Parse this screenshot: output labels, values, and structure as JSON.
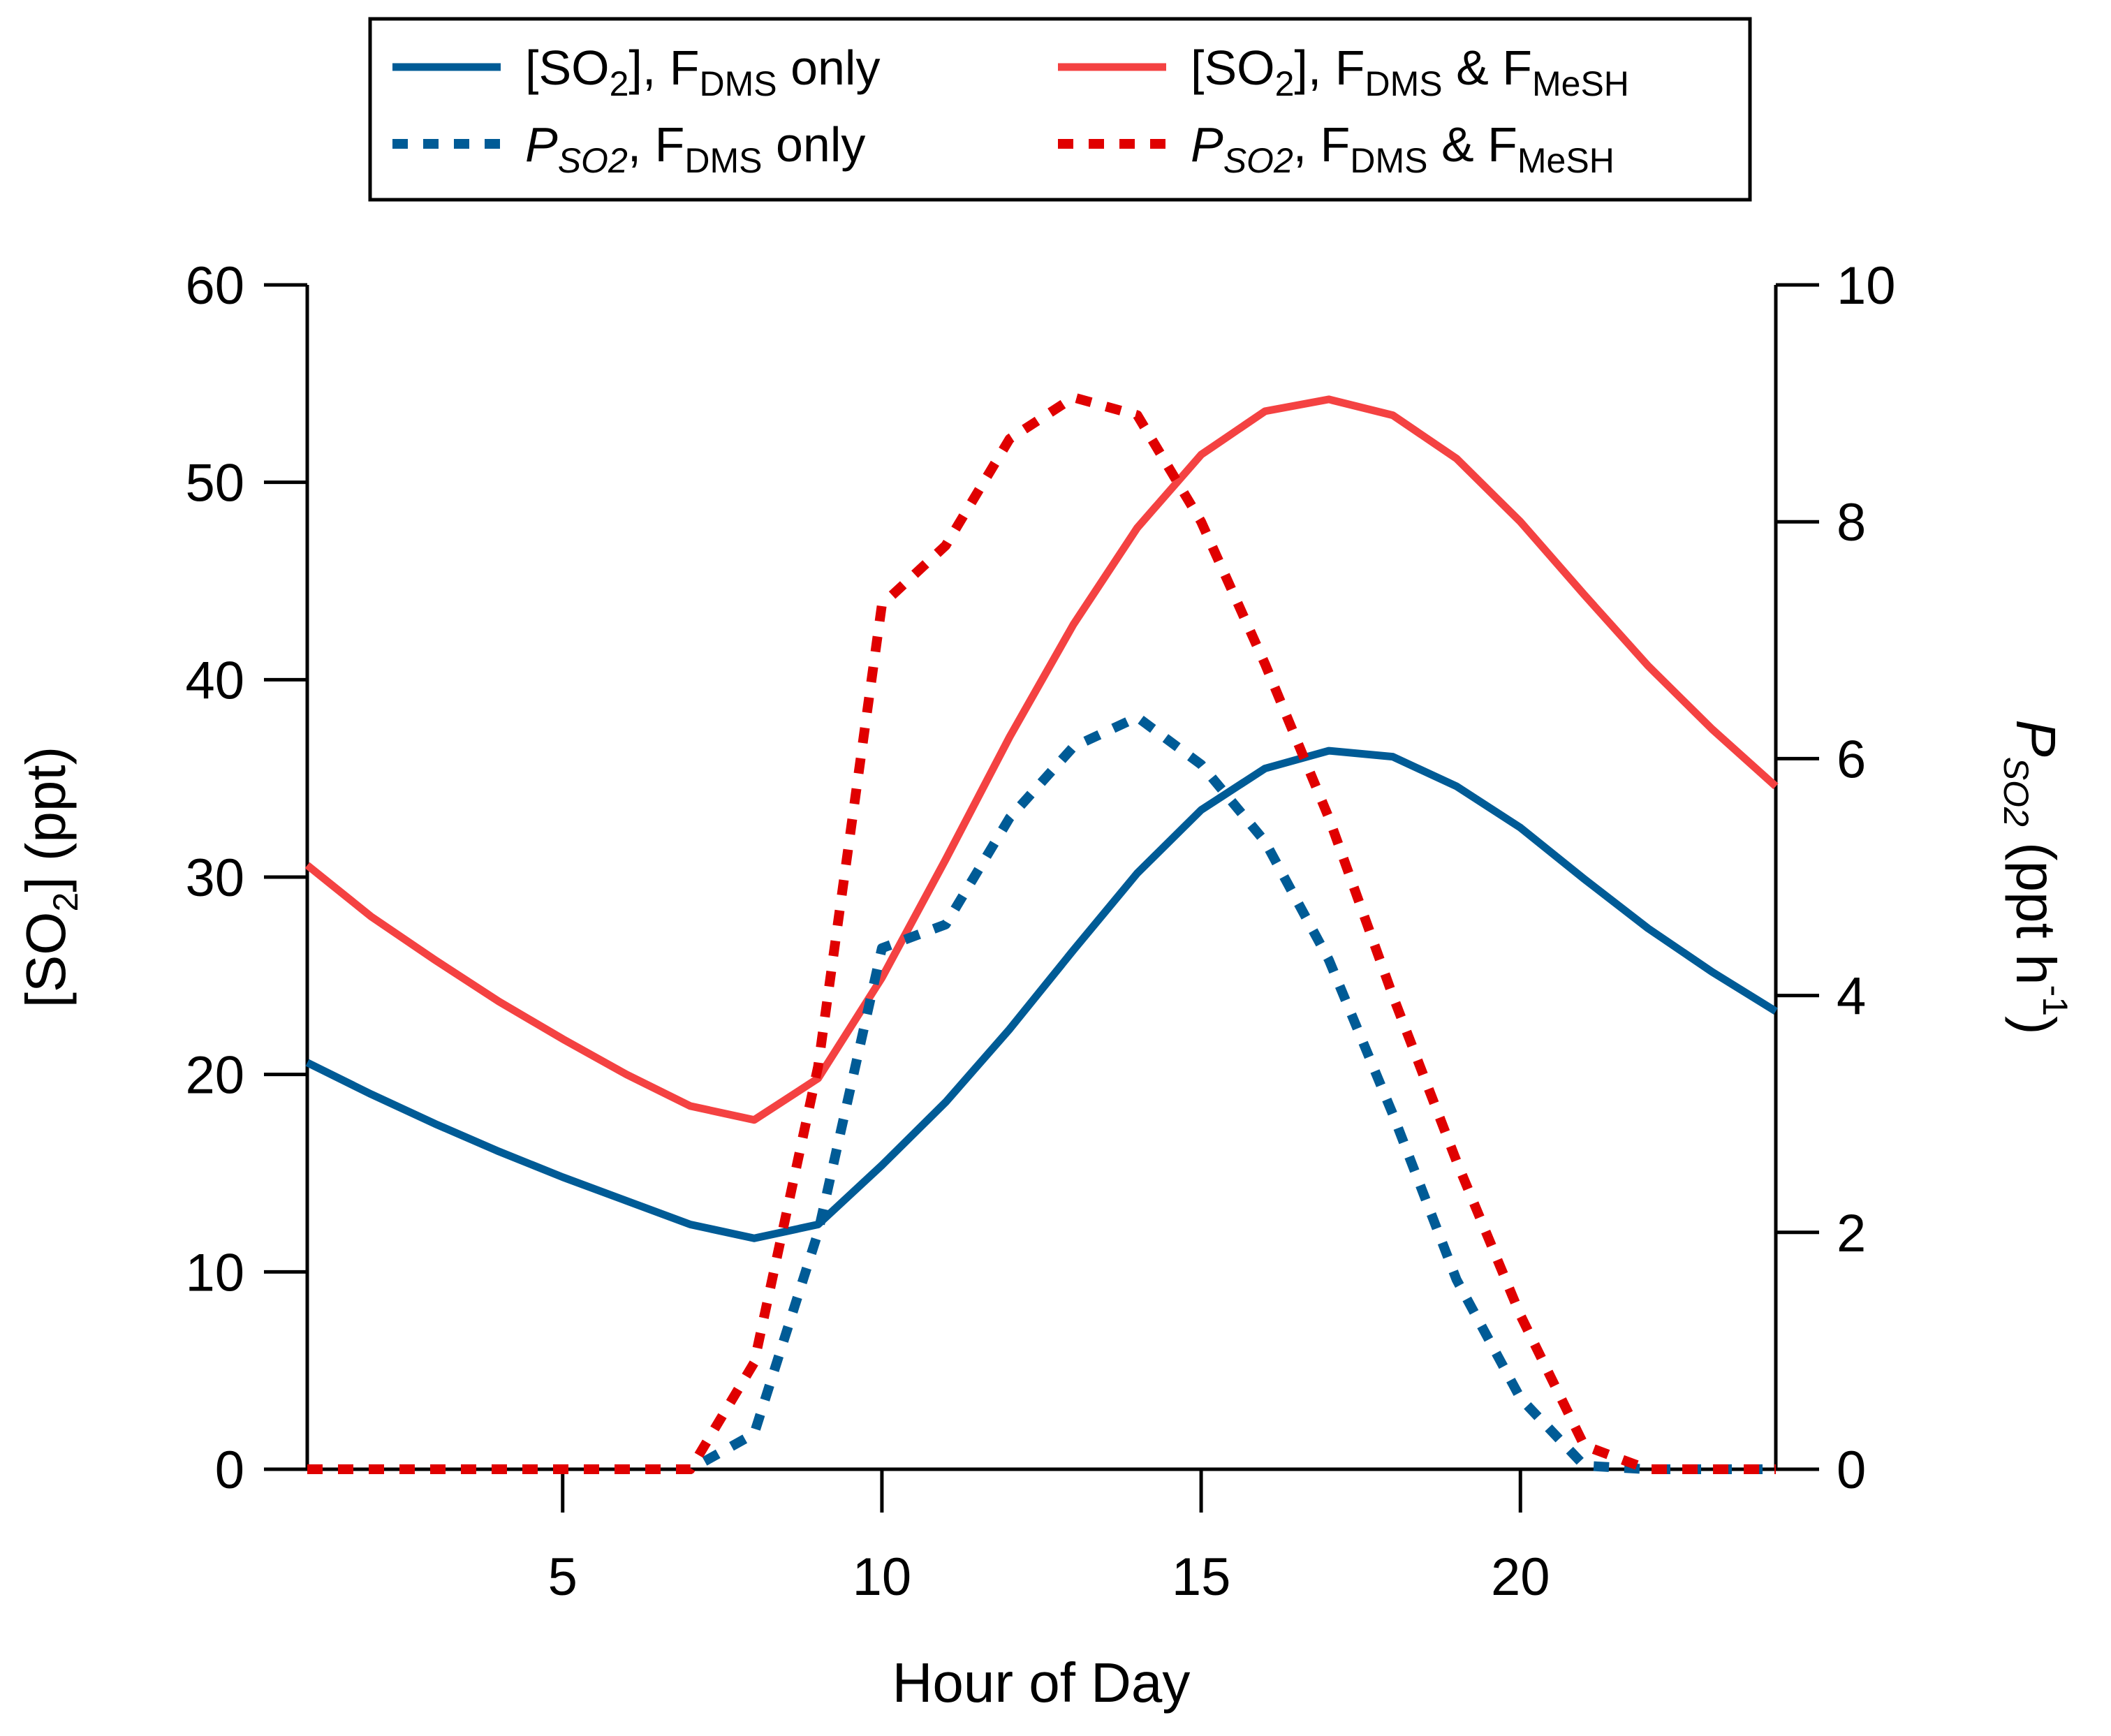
{
  "chart_data": {
    "type": "line",
    "xlabel": "Hour of Day",
    "ylabel_left": {
      "prefix": "[SO",
      "sub": "2",
      "suffix": "] (ppt)"
    },
    "ylabel_right": {
      "main": "P",
      "sub": "SO2",
      "suffix": " (ppt h",
      "sup": "-1",
      "close": ")"
    },
    "xlim": [
      1,
      24
    ],
    "ylim_left": [
      0,
      60
    ],
    "ylim_right": [
      0,
      10
    ],
    "x_ticks": [
      5,
      10,
      15,
      20
    ],
    "y_left_ticks": [
      0,
      10,
      20,
      30,
      40,
      50,
      60
    ],
    "y_right_ticks": [
      0,
      2,
      4,
      6,
      8,
      10
    ],
    "grid": false,
    "legend_position": "top-outside",
    "x": [
      1,
      2,
      3,
      4,
      5,
      6,
      7,
      8,
      9,
      10,
      11,
      12,
      13,
      14,
      15,
      16,
      17,
      18,
      19,
      20,
      21,
      22,
      23,
      24
    ],
    "series": [
      {
        "axis": "left",
        "style": "solid",
        "color": "#005b96",
        "legend": {
          "a": "[SO",
          "a_sub": "2",
          "b": "], F",
          "b_sub": "DMS",
          "c": " only",
          "c_sub": ""
        },
        "values": [
          20.6,
          19.0,
          17.5,
          16.1,
          14.8,
          13.6,
          12.4,
          11.7,
          12.4,
          15.4,
          18.6,
          22.3,
          26.3,
          30.2,
          33.4,
          35.5,
          36.4,
          36.1,
          34.6,
          32.5,
          29.9,
          27.4,
          25.2,
          23.2
        ]
      },
      {
        "axis": "right",
        "style": "dotted",
        "color": "#005b96",
        "legend": {
          "a": "P",
          "a_sub": "SO2",
          "b": ", F",
          "b_sub": "DMS",
          "c": " only",
          "c_sub": ""
        },
        "values": [
          0,
          0,
          0,
          0,
          0,
          0,
          0,
          0.3,
          2.0,
          4.4,
          4.6,
          5.5,
          6.1,
          6.35,
          5.95,
          5.3,
          4.3,
          3.0,
          1.6,
          0.6,
          0.03,
          0,
          0,
          0
        ]
      },
      {
        "axis": "left",
        "style": "solid",
        "color": "#f44242",
        "legend": {
          "a": "[SO",
          "a_sub": "2",
          "b": "], F",
          "b_sub": "DMS",
          "c": " &  F",
          "c_sub": "MeSH"
        },
        "values": [
          30.6,
          28.0,
          25.8,
          23.7,
          21.8,
          20.0,
          18.4,
          17.7,
          19.8,
          24.9,
          30.9,
          37.1,
          42.8,
          47.7,
          51.4,
          53.6,
          54.2,
          53.4,
          51.2,
          48.0,
          44.3,
          40.7,
          37.5,
          34.6
        ]
      },
      {
        "axis": "right",
        "style": "dotted",
        "color": "#e00000",
        "legend": {
          "a": "P",
          "a_sub": "SO2",
          "b": ",  F",
          "b_sub": "DMS",
          "c": " &  F",
          "c_sub": "MeSH"
        },
        "values": [
          0,
          0,
          0,
          0,
          0,
          0,
          0,
          0.9,
          3.4,
          7.3,
          7.8,
          8.7,
          9.05,
          8.9,
          8.0,
          6.8,
          5.5,
          4.0,
          2.6,
          1.3,
          0.2,
          0,
          0,
          0
        ]
      }
    ]
  }
}
